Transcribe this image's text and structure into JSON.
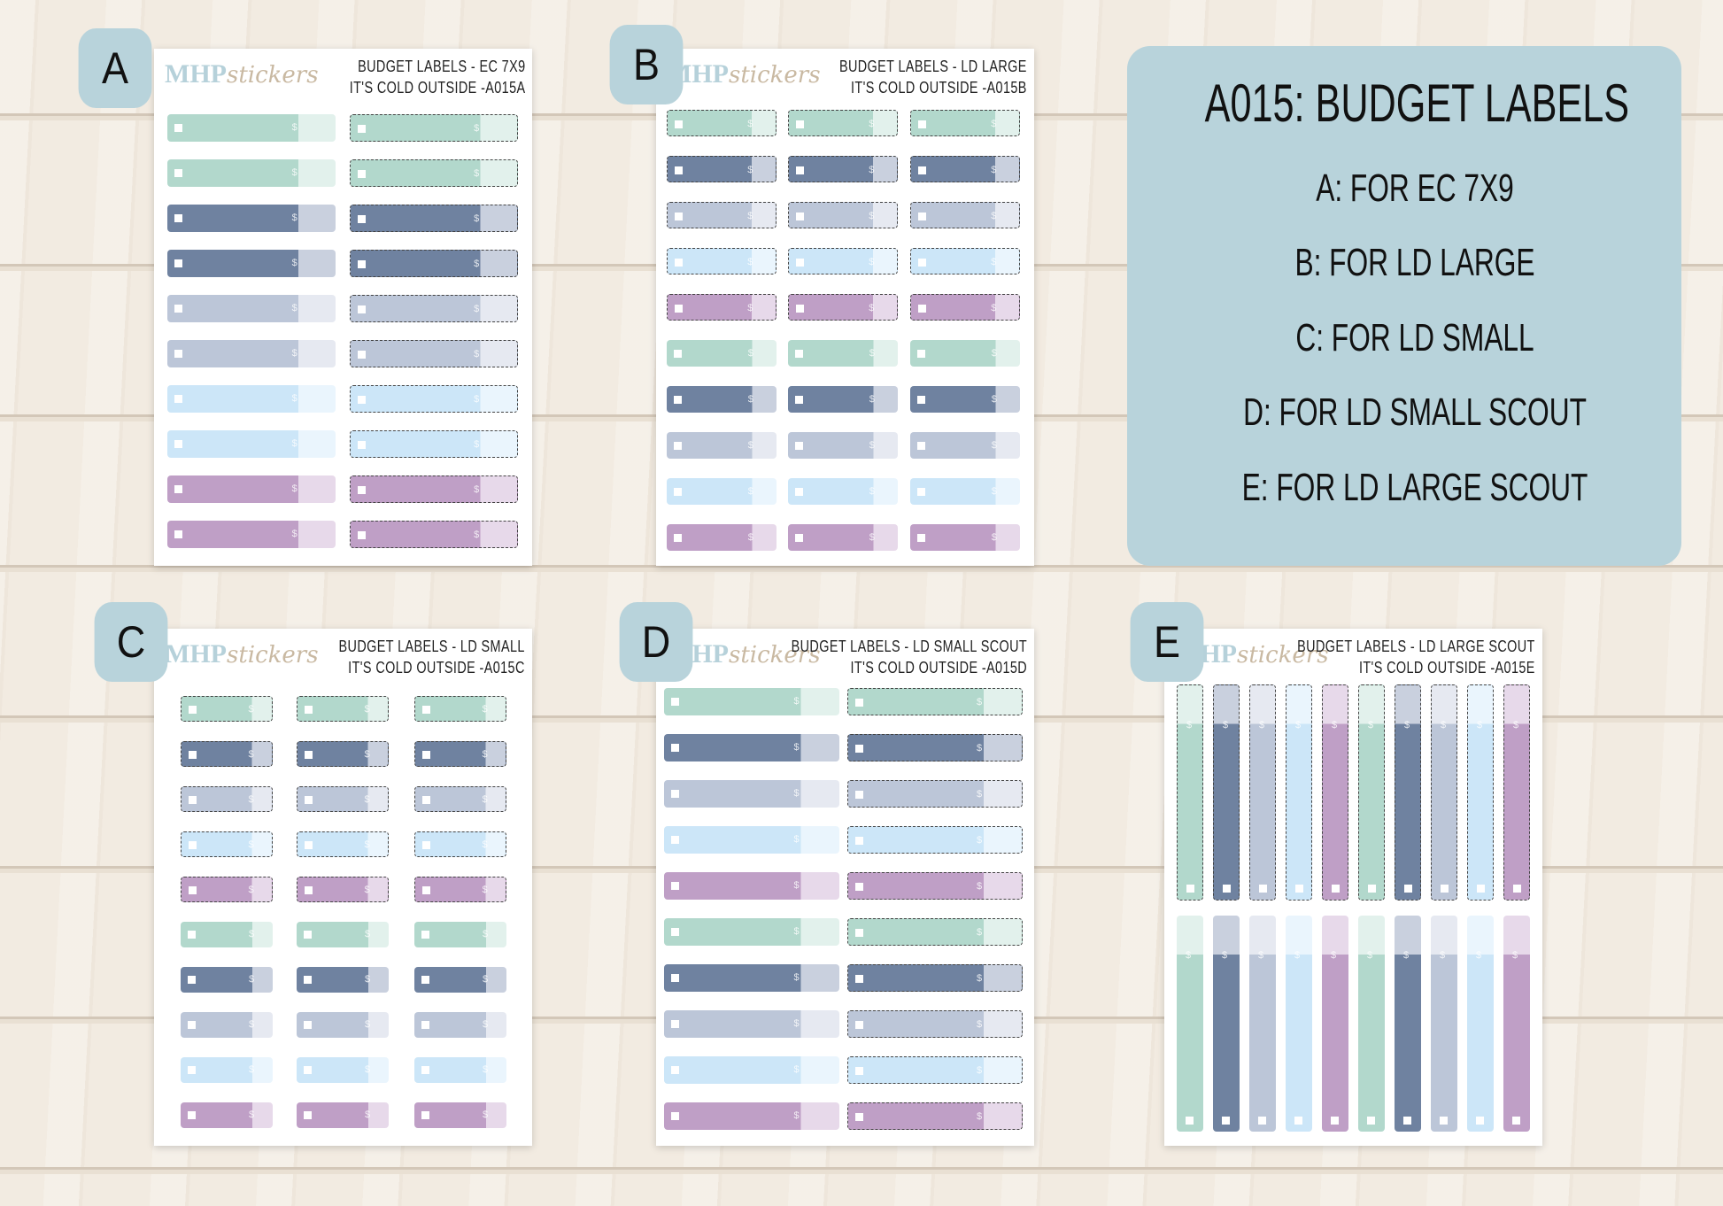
{
  "badges": [
    "A",
    "B",
    "C",
    "D",
    "E"
  ],
  "logo": {
    "brand": "MHP",
    "word": "stickers"
  },
  "sheets": [
    {
      "title": "BUDGET LABELS - EC 7X9",
      "subtitle": "IT'S COLD OUTSIDE -A015A"
    },
    {
      "title": "BUDGET LABELS - LD LARGE",
      "subtitle": "IT'S COLD OUTSIDE -A015B"
    },
    {
      "title": "BUDGET LABELS - LD SMALL",
      "subtitle": "IT'S COLD OUTSIDE -A015C"
    },
    {
      "title": "BUDGET LABELS - LD SMALL SCOUT",
      "subtitle": "IT'S COLD OUTSIDE -A015D"
    },
    {
      "title": "BUDGET LABELS - LD LARGE SCOUT",
      "subtitle": "IT'S COLD OUTSIDE -A015E"
    }
  ],
  "info": {
    "title": "A015: BUDGET LABELS",
    "lines": [
      "A: FOR EC 7X9",
      "B: FOR LD LARGE",
      "C: FOR LD SMALL",
      "D: FOR LD SMALL SCOUT",
      "E: FOR LD LARGE SCOUT"
    ]
  },
  "sticker_symbol": "$"
}
